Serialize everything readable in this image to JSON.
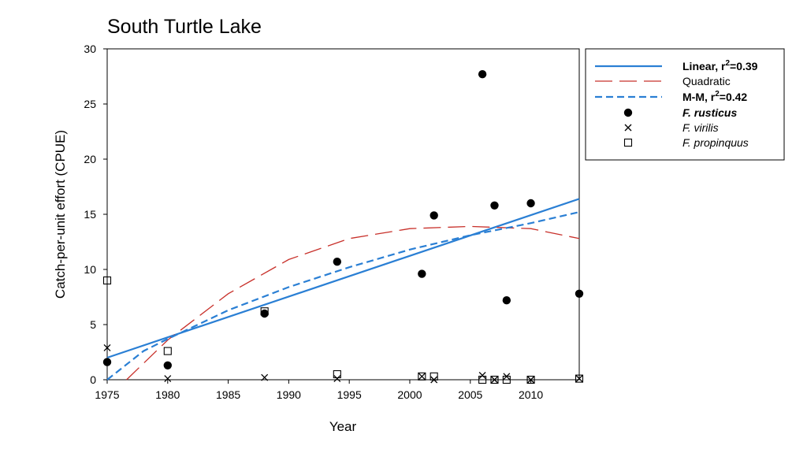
{
  "chart_data": {
    "type": "scatter",
    "title": "South Turtle Lake",
    "xlabel": "Year",
    "ylabel": "Catch-per-unit effort (CPUE)",
    "xlim": [
      1975,
      2014
    ],
    "ylim": [
      0,
      30
    ],
    "x_ticks": [
      1975,
      1980,
      1985,
      1990,
      1995,
      2000,
      2005,
      2010
    ],
    "x_tick_labels": [
      "1975",
      "1980",
      "1985",
      "1990",
      "1995",
      "2000",
      "2005",
      "2010"
    ],
    "y_ticks": [
      0,
      5,
      10,
      15,
      20,
      25,
      30
    ],
    "y_tick_labels": [
      "0",
      "5",
      "10",
      "15",
      "20",
      "25",
      "30"
    ],
    "grid": false,
    "legend_position": "right",
    "legend": [
      {
        "key": "linear",
        "label": "Linear, r",
        "sup": "2",
        "suffix": "=0.39",
        "style": "bold"
      },
      {
        "key": "quadratic",
        "label": "Quadratic",
        "style": "normal"
      },
      {
        "key": "mm",
        "label": "M-M, r",
        "sup": "2",
        "suffix": "=0.42",
        "style": "bold"
      },
      {
        "key": "rusticus",
        "label": "F. rusticus",
        "style": "bold-italic"
      },
      {
        "key": "virilis",
        "label": "F. virilis",
        "style": "italic"
      },
      {
        "key": "propinquus",
        "label": "F. propinquus",
        "style": "italic"
      }
    ],
    "series": [
      {
        "key": "rusticus",
        "marker": "filled-circle",
        "color": "#000000",
        "x": [
          1975,
          1980,
          1988,
          1994,
          2001,
          2002,
          2006,
          2007,
          2008,
          2010,
          2014
        ],
        "y": [
          1.6,
          1.3,
          6.0,
          10.7,
          9.6,
          14.9,
          27.7,
          15.8,
          7.2,
          16.0,
          7.8
        ]
      },
      {
        "key": "virilis",
        "marker": "x",
        "color": "#000000",
        "x": [
          1975,
          1980,
          1988,
          1994,
          2001,
          2002,
          2006,
          2007,
          2008,
          2010,
          2014
        ],
        "y": [
          2.9,
          0.1,
          0.2,
          0.1,
          0.3,
          0.0,
          0.4,
          0.0,
          0.3,
          0.0,
          0.1
        ]
      },
      {
        "key": "propinquus",
        "marker": "open-square",
        "color": "#000000",
        "x": [
          1975,
          1980,
          1988,
          1994,
          2001,
          2002,
          2006,
          2007,
          2008,
          2010,
          2014
        ],
        "y": [
          9.0,
          2.6,
          6.2,
          0.5,
          0.3,
          0.3,
          0.0,
          0.0,
          0.0,
          0.0,
          0.1
        ]
      }
    ],
    "fits": [
      {
        "key": "linear",
        "color": "#2a7fd4",
        "dash": "solid",
        "x": [
          1975,
          2014
        ],
        "y": [
          2.0,
          16.4
        ]
      },
      {
        "key": "quadratic",
        "color": "#c8302a",
        "dash": "long-dash",
        "x": [
          1976.6,
          1980,
          1985,
          1990,
          1995,
          2000,
          2005,
          2010,
          2014
        ],
        "y": [
          0.0,
          3.6,
          7.8,
          10.9,
          12.8,
          13.7,
          13.9,
          13.7,
          12.8
        ]
      },
      {
        "key": "mm",
        "color": "#2a7fd4",
        "dash": "short-dash",
        "x": [
          1975,
          1978,
          1980,
          1985,
          1990,
          1995,
          2000,
          2005,
          2010,
          2014
        ],
        "y": [
          0.0,
          2.6,
          3.7,
          6.3,
          8.4,
          10.2,
          11.8,
          13.1,
          14.2,
          15.2
        ]
      }
    ]
  }
}
